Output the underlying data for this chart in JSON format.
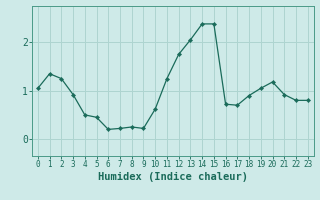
{
  "x": [
    0,
    1,
    2,
    3,
    4,
    5,
    6,
    7,
    8,
    9,
    10,
    11,
    12,
    13,
    14,
    15,
    16,
    17,
    18,
    19,
    20,
    21,
    22,
    23
  ],
  "y": [
    1.05,
    1.35,
    1.25,
    0.92,
    0.5,
    0.45,
    0.2,
    0.22,
    0.25,
    0.22,
    0.62,
    1.25,
    1.75,
    2.05,
    2.38,
    2.38,
    0.72,
    0.7,
    0.9,
    1.05,
    1.18,
    0.92,
    0.8,
    0.8
  ],
  "line_color": "#1a6b5a",
  "marker": "D",
  "marker_size": 2.2,
  "bg_color": "#ceeae8",
  "grid_color": "#aed4d0",
  "xlabel": "Humidex (Indice chaleur)",
  "yticks": [
    0,
    1,
    2
  ],
  "ylim": [
    -0.35,
    2.75
  ],
  "xlim": [
    -0.5,
    23.5
  ],
  "xlabel_fontsize": 7.5,
  "ytick_fontsize": 7,
  "xtick_fontsize": 5.5,
  "tick_color": "#1a6b5a",
  "axis_color": "#4a9a88",
  "linewidth": 0.9
}
